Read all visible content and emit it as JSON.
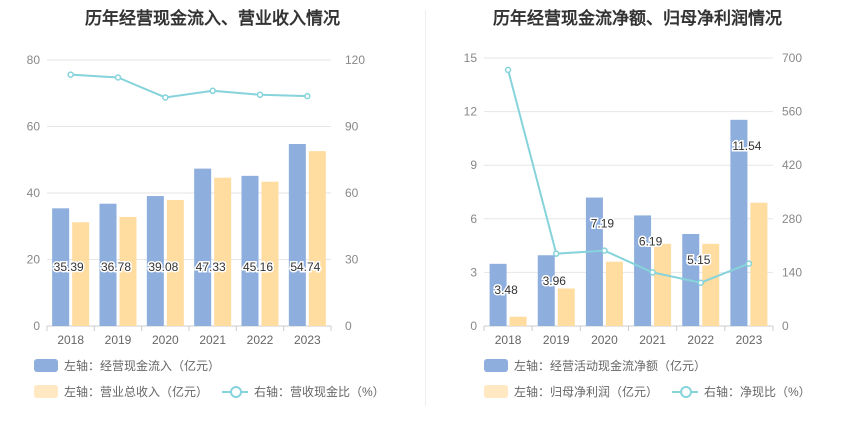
{
  "chart_data": [
    {
      "type": "bar",
      "title": "历年经营现金流入、营业收入情况",
      "categories": [
        "2018",
        "2019",
        "2020",
        "2021",
        "2022",
        "2023"
      ],
      "series": [
        {
          "name": "左轴：经营现金流入（亿元）",
          "axis": "left",
          "type": "bar",
          "color": "#8eaedd",
          "values": [
            35.39,
            36.78,
            39.08,
            47.33,
            45.16,
            54.74
          ],
          "labels": [
            "35.39",
            "36.78",
            "39.08",
            "47.33",
            "45.16",
            "54.74"
          ]
        },
        {
          "name": "左轴：营业总收入（亿元）",
          "axis": "left",
          "type": "bar",
          "color": "#ffdca0",
          "values": [
            31.2,
            32.8,
            37.9,
            44.6,
            43.4,
            52.6
          ]
        },
        {
          "name": "右轴：营收现金比（%）",
          "axis": "right",
          "type": "line",
          "color": "#86d3db",
          "values": [
            113.4,
            112.1,
            103.1,
            106.1,
            104.3,
            103.7
          ]
        }
      ],
      "left_axis": {
        "ticks": [
          "0",
          "20",
          "40",
          "60",
          "80"
        ],
        "ylim": [
          0,
          80
        ]
      },
      "right_axis": {
        "ticks": [
          "0",
          "30",
          "60",
          "90",
          "120"
        ],
        "ylim": [
          0,
          120
        ]
      },
      "legend_position": "bottom",
      "grid": true
    },
    {
      "type": "bar",
      "title": "历年经营现金流净额、归母净利润情况",
      "categories": [
        "2018",
        "2019",
        "2020",
        "2021",
        "2022",
        "2023"
      ],
      "series": [
        {
          "name": "左轴：经营活动现金流净额（亿元）",
          "axis": "left",
          "type": "bar",
          "color": "#8eaedd",
          "values": [
            3.48,
            3.96,
            7.19,
            6.19,
            5.15,
            11.54
          ],
          "labels": [
            "3.48",
            "3.96",
            "7.19",
            "6.19",
            "5.15",
            "11.54"
          ]
        },
        {
          "name": "左轴：归母净利润（亿元）",
          "axis": "left",
          "type": "bar",
          "color": "#ffdca0",
          "values": [
            0.52,
            2.1,
            3.6,
            4.6,
            4.6,
            6.9
          ]
        },
        {
          "name": "右轴：净现比（%）",
          "axis": "right",
          "type": "line",
          "color": "#86d3db",
          "values": [
            669,
            189,
            197,
            140,
            113,
            163
          ]
        }
      ],
      "left_axis": {
        "ticks": [
          "0",
          "3",
          "6",
          "9",
          "12",
          "15"
        ],
        "ylim": [
          0,
          15
        ]
      },
      "right_axis": {
        "ticks": [
          "0",
          "140",
          "280",
          "420",
          "560",
          "700"
        ],
        "ylim": [
          0,
          700
        ]
      },
      "legend_position": "bottom",
      "grid": true
    }
  ]
}
